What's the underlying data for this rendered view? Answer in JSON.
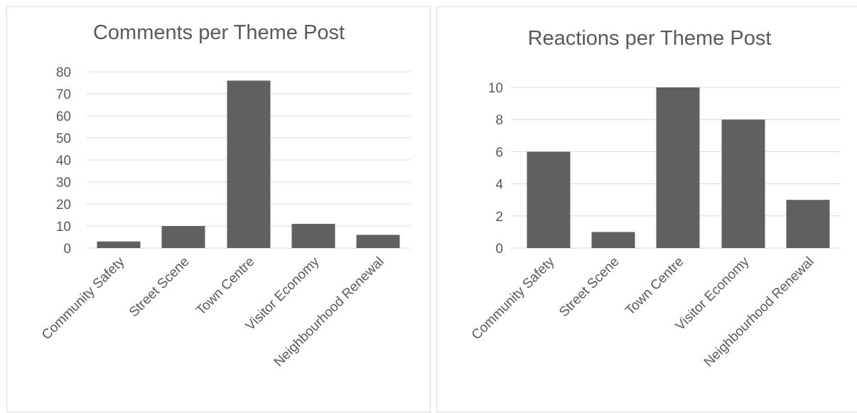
{
  "chart_data": [
    {
      "type": "bar",
      "title": "Comments per Theme Post",
      "categories": [
        "Community Safety",
        "Street Scene",
        "Town Centre",
        "Visitor Economy",
        "Neighbourhood Renewal"
      ],
      "values": [
        3,
        10,
        76,
        11,
        6
      ],
      "ylim": [
        0,
        80
      ],
      "yticks": [
        0,
        10,
        20,
        30,
        40,
        50,
        60,
        70,
        80
      ],
      "grid": true,
      "bar_color": "#606060"
    },
    {
      "type": "bar",
      "title": "Reactions per Theme Post",
      "categories": [
        "Community Safety",
        "Street Scene",
        "Town Centre",
        "Visitor Economy",
        "Neighbourhood Renewal"
      ],
      "values": [
        6,
        1,
        10,
        8,
        3
      ],
      "ylim": [
        0,
        10
      ],
      "yticks": [
        0,
        2,
        4,
        6,
        8,
        10
      ],
      "grid": true,
      "bar_color": "#606060"
    }
  ]
}
